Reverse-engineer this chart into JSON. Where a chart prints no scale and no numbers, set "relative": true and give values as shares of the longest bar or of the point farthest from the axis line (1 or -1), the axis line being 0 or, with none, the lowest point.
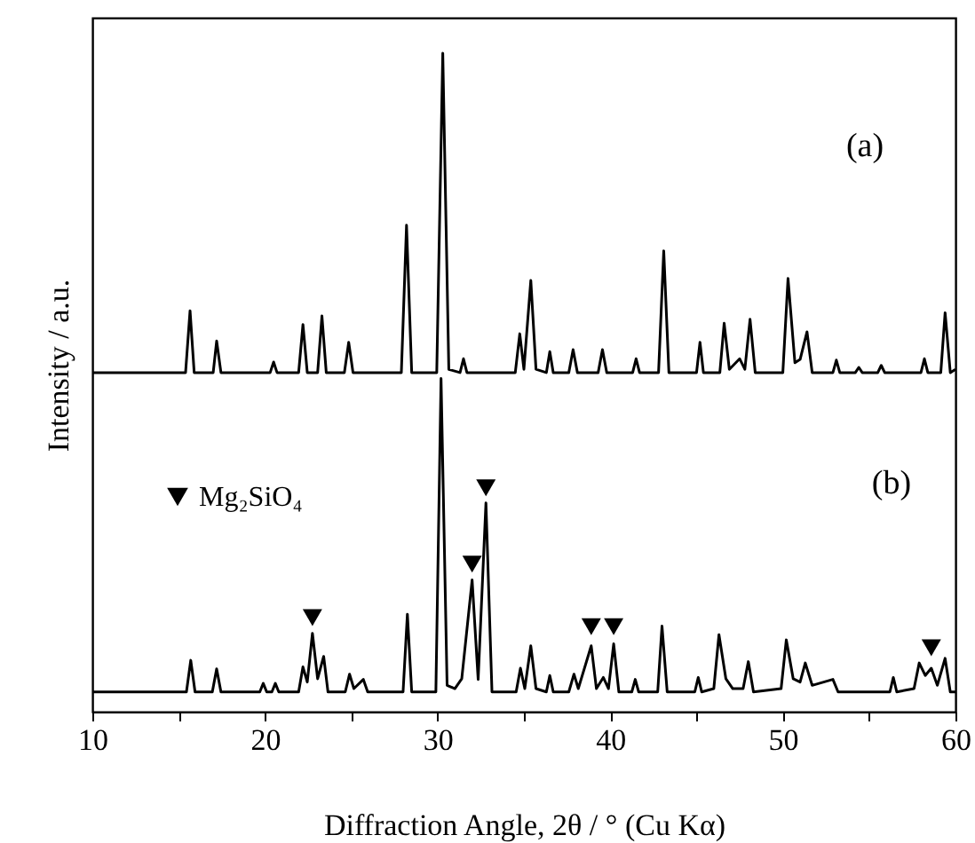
{
  "chart_data": {
    "type": "line",
    "xlabel": "Diffraction Angle, 2θ / ° (Cu Kα)",
    "ylabel": "Intensity / a.u.",
    "relative": true,
    "xlim": [
      10,
      60
    ],
    "xticks": [
      10,
      {
        "value": 15,
        "label": null
      },
      20,
      {
        "value": 25,
        "label": null
      },
      30,
      {
        "value": 35,
        "label": null
      },
      40,
      {
        "value": 45,
        "label": null
      },
      50,
      {
        "value": 55,
        "label": null
      },
      60
    ],
    "grid": false,
    "legend": "left",
    "annotations": [
      "(a)",
      "(b)"
    ],
    "series": [
      {
        "color": "#000000",
        "x": [
          10,
          15.4,
          15.66,
          15.9,
          17.0,
          17.2,
          17.45,
          20.3,
          20.5,
          20.7,
          21.95,
          22.2,
          22.45,
          23.05,
          23.3,
          23.55,
          24.6,
          24.85,
          25.1,
          27.9,
          28.2,
          28.5,
          29.95,
          30.3,
          30.65,
          31.3,
          31.5,
          31.7,
          34.5,
          34.76,
          35.0,
          35.4,
          35.7,
          36.3,
          36.5,
          36.7,
          37.6,
          37.85,
          38.1,
          39.3,
          39.55,
          39.8,
          41.3,
          41.5,
          41.7,
          42.8,
          43.1,
          43.4,
          45.0,
          45.2,
          45.4,
          46.35,
          46.6,
          46.9,
          47.5,
          47.8,
          48.1,
          48.4,
          50.0,
          50.3,
          50.7,
          51.0,
          51.4,
          51.7,
          52.9,
          53.1,
          53.3,
          54.2,
          54.4,
          54.6,
          55.5,
          55.7,
          55.9,
          58.0,
          58.2,
          58.4,
          59.15,
          59.4,
          59.7,
          60
        ],
        "values": [
          0.515,
          0.515,
          0.609,
          0.515,
          0.515,
          0.563,
          0.515,
          0.515,
          0.531,
          0.515,
          0.515,
          0.588,
          0.515,
          0.515,
          0.601,
          0.515,
          0.515,
          0.561,
          0.515,
          0.515,
          0.739,
          0.515,
          0.515,
          1,
          0.52,
          0.515,
          0.536,
          0.515,
          0.515,
          0.574,
          0.52,
          0.655,
          0.52,
          0.515,
          0.547,
          0.515,
          0.515,
          0.55,
          0.515,
          0.515,
          0.55,
          0.515,
          0.515,
          0.536,
          0.515,
          0.515,
          0.7,
          0.515,
          0.515,
          0.561,
          0.515,
          0.515,
          0.59,
          0.52,
          0.536,
          0.52,
          0.596,
          0.515,
          0.515,
          0.658,
          0.53,
          0.535,
          0.577,
          0.515,
          0.515,
          0.534,
          0.515,
          0.515,
          0.523,
          0.515,
          0.515,
          0.526,
          0.515,
          0.515,
          0.536,
          0.515,
          0.515,
          0.606,
          0.515,
          0.52
        ]
      },
      {
        "color": "#000000",
        "x": [
          10,
          15.45,
          15.7,
          15.95,
          16.95,
          17.2,
          17.45,
          19.7,
          19.9,
          20.1,
          20.4,
          20.6,
          20.8,
          21.95,
          22.2,
          22.45,
          22.75,
          23.05,
          23.4,
          23.65,
          24.65,
          24.9,
          25.15,
          25.7,
          25.95,
          28.0,
          28.25,
          28.5,
          29.9,
          30.2,
          30.55,
          31.0,
          31.4,
          32.0,
          32.35,
          32.8,
          33.15,
          34.55,
          34.8,
          35.05,
          35.4,
          35.7,
          36.3,
          36.5,
          36.7,
          37.6,
          37.9,
          38.15,
          38.9,
          39.2,
          39.6,
          39.9,
          40.2,
          40.5,
          41.25,
          41.45,
          41.65,
          42.75,
          43.0,
          43.3,
          44.9,
          45.1,
          45.3,
          46.0,
          46.3,
          46.7,
          47.1,
          47.7,
          48.0,
          48.3,
          49.9,
          50.2,
          50.6,
          51.0,
          51.3,
          51.7,
          52.9,
          53.2,
          56.2,
          56.4,
          56.6,
          57.6,
          57.9,
          58.25,
          58.6,
          58.95,
          59.4,
          59.7,
          60
        ],
        "values": [
          0.03,
          0.03,
          0.078,
          0.03,
          0.03,
          0.065,
          0.03,
          0.03,
          0.043,
          0.03,
          0.03,
          0.043,
          0.03,
          0.03,
          0.068,
          0.045,
          0.119,
          0.05,
          0.084,
          0.03,
          0.03,
          0.057,
          0.035,
          0.049,
          0.03,
          0.03,
          0.148,
          0.03,
          0.03,
          0.506,
          0.04,
          0.035,
          0.05,
          0.2,
          0.049,
          0.317,
          0.03,
          0.03,
          0.066,
          0.035,
          0.1,
          0.035,
          0.03,
          0.055,
          0.03,
          0.03,
          0.057,
          0.035,
          0.1,
          0.035,
          0.052,
          0.035,
          0.103,
          0.03,
          0.03,
          0.049,
          0.03,
          0.03,
          0.13,
          0.03,
          0.03,
          0.052,
          0.03,
          0.035,
          0.117,
          0.05,
          0.035,
          0.035,
          0.076,
          0.03,
          0.035,
          0.109,
          0.05,
          0.045,
          0.074,
          0.04,
          0.049,
          0.03,
          0.03,
          0.052,
          0.03,
          0.035,
          0.074,
          0.055,
          0.066,
          0.04,
          0.081,
          0.03,
          0.03
        ]
      },
      {
        "type": "scatter",
        "name": "Mg₂SiO₄",
        "color": "#000000",
        "marker": "triangle",
        "x": [
          22.75,
          32.0,
          32.8,
          38.9,
          40.2,
          58.6
        ],
        "values": [
          0.143,
          0.224,
          0.34,
          0.129,
          0.129,
          0.097
        ]
      }
    ]
  }
}
